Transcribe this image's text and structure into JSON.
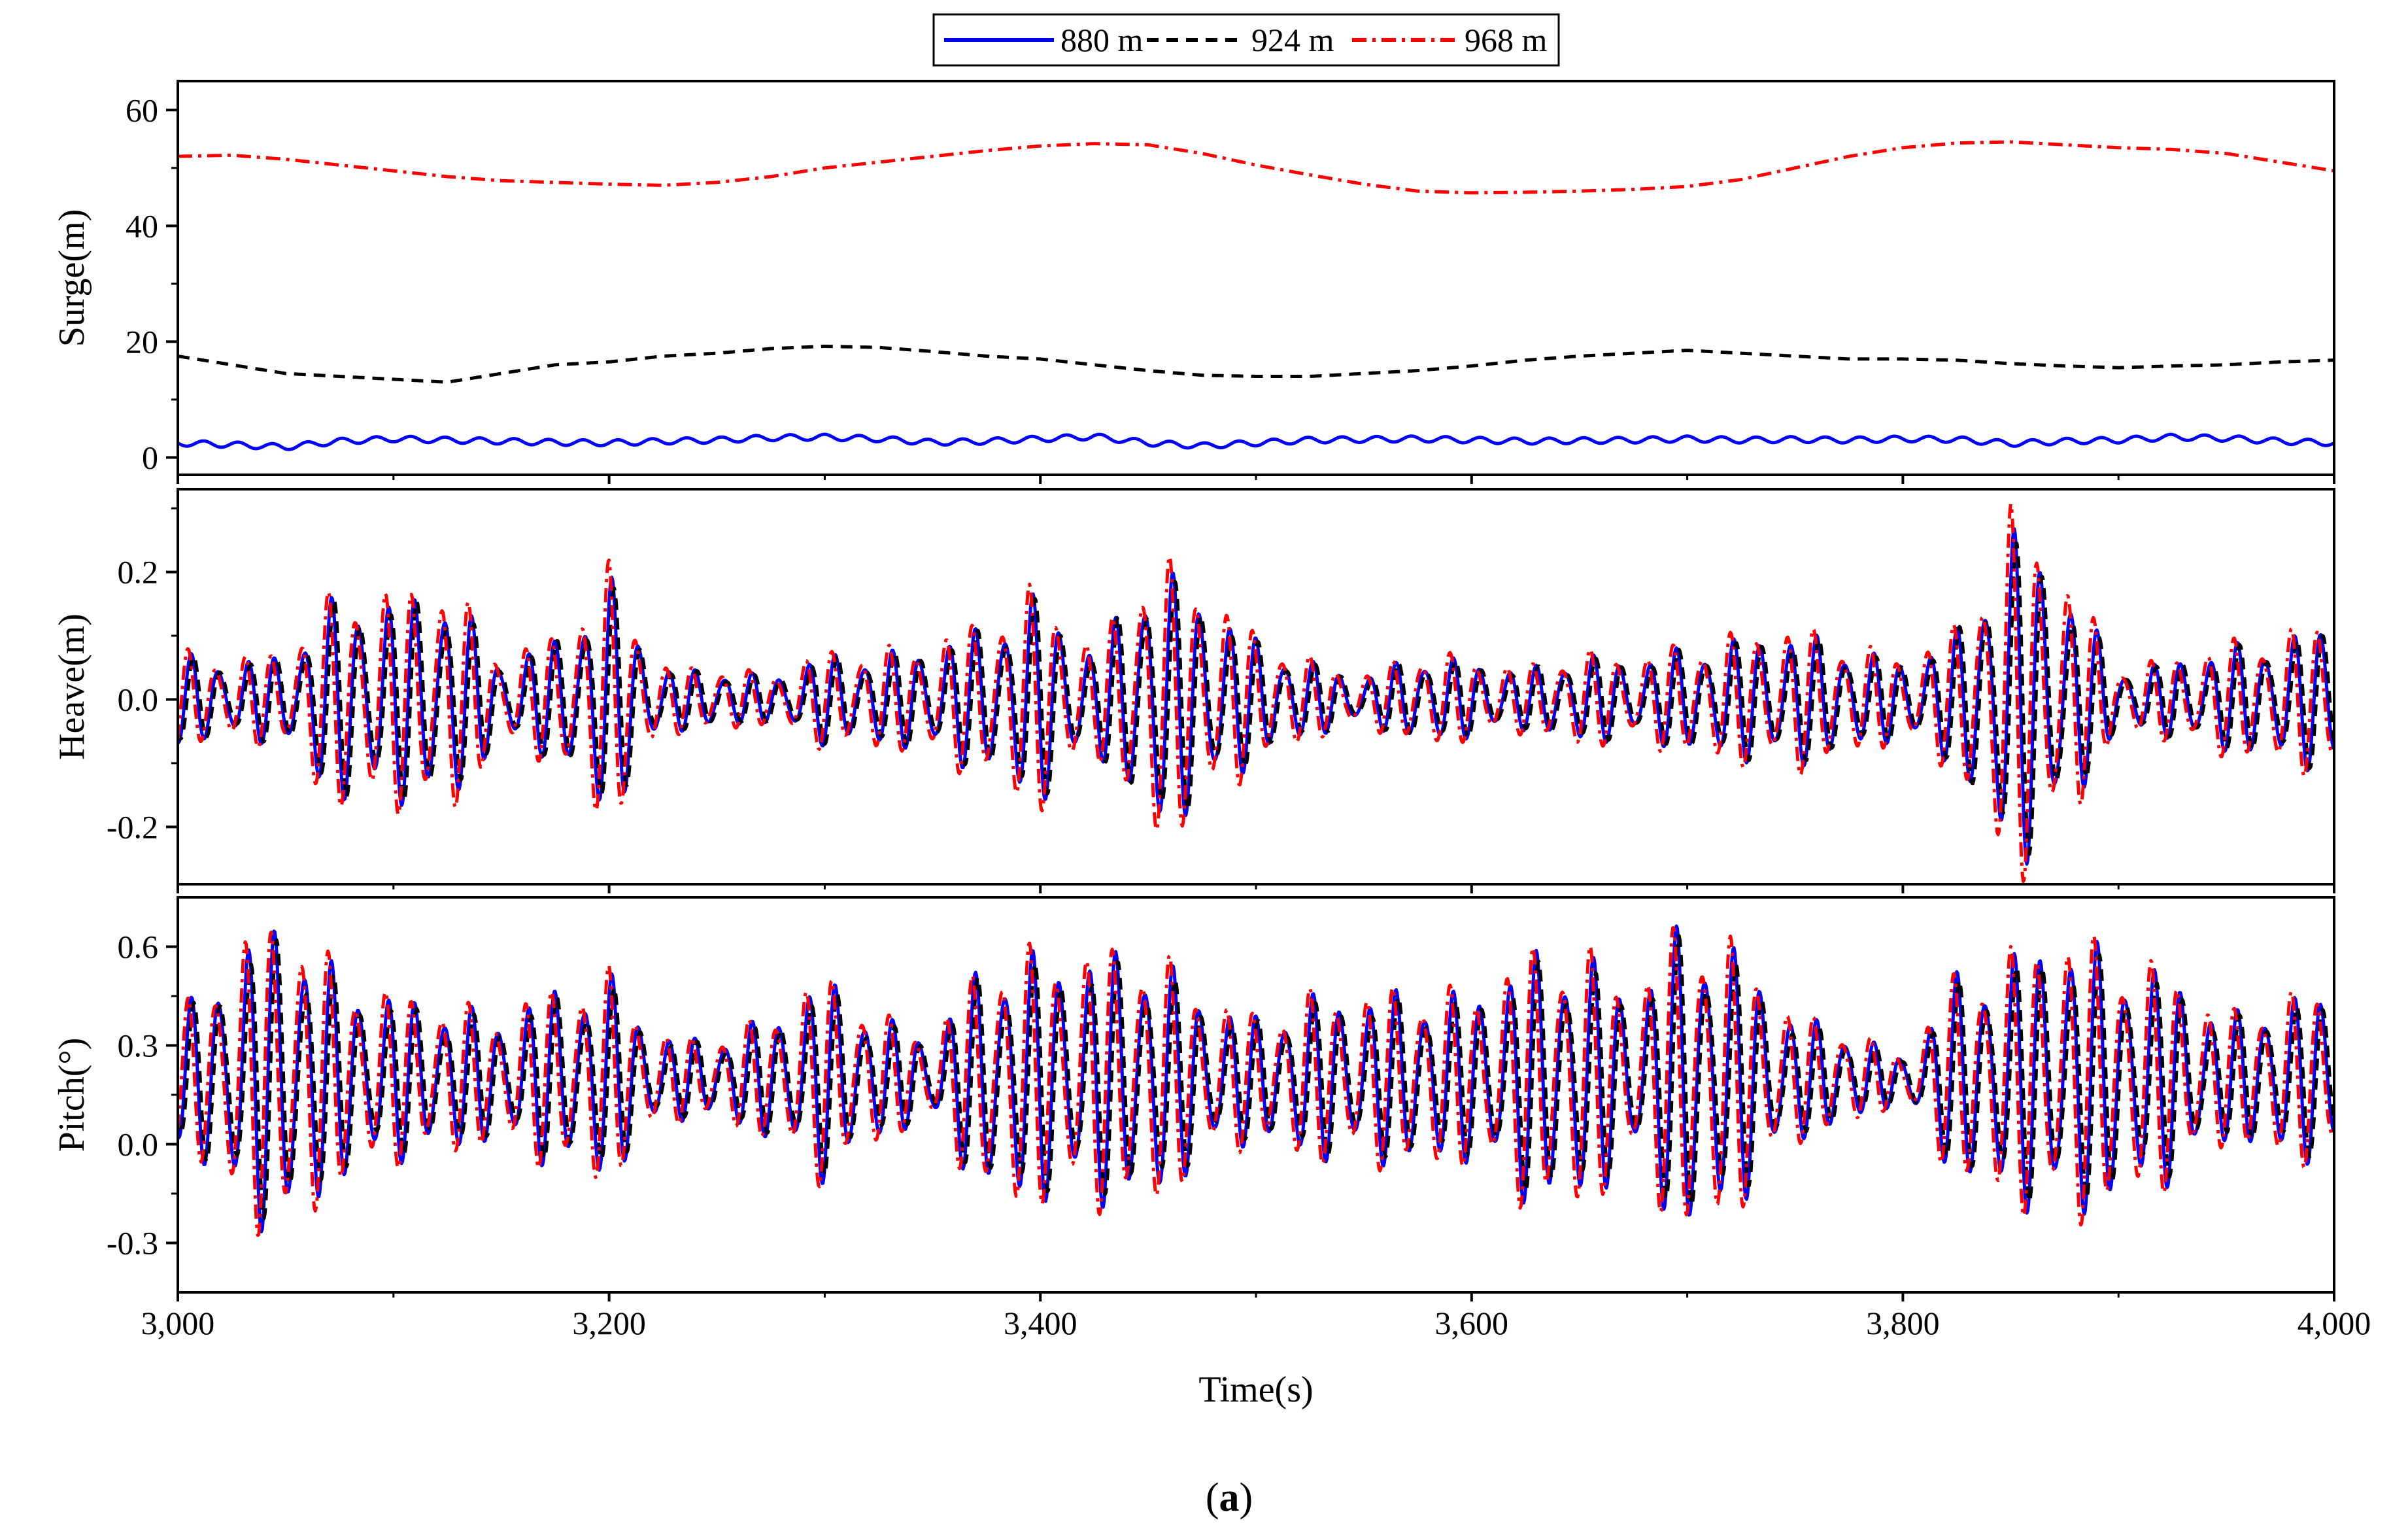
{
  "legend": {
    "entries": [
      {
        "label": "880 m",
        "color": "#0000ff",
        "style": "solid"
      },
      {
        "label": "924 m",
        "color": "#000000",
        "style": "dash"
      },
      {
        "label": "968 m",
        "color": "#ff0000",
        "style": "dashdot"
      }
    ]
  },
  "caption": {
    "open": "(",
    "letter": "a",
    "close": ")"
  },
  "x_axis": {
    "title": "Time(s)",
    "range": [
      3000,
      4000
    ],
    "ticks": [
      3000,
      3200,
      3400,
      3600,
      3800,
      4000
    ],
    "tick_labels": [
      "3,000",
      "3,200",
      "3,400",
      "3,600",
      "3,800",
      "4,000"
    ],
    "minor_ticks": [
      3100,
      3300,
      3500,
      3700,
      3900
    ]
  },
  "chart_data": [
    {
      "type": "line",
      "id": "surge",
      "ylabel": "Surge(m)",
      "ylim": [
        -3,
        65
      ],
      "yticks": [
        0,
        20,
        40,
        60
      ],
      "ytick_labels": [
        "0",
        "20",
        "40",
        "60"
      ],
      "yminor": [
        10,
        30,
        50
      ],
      "x": [
        3000,
        3025,
        3050,
        3075,
        3100,
        3125,
        3150,
        3175,
        3200,
        3225,
        3250,
        3275,
        3300,
        3325,
        3350,
        3375,
        3400,
        3425,
        3450,
        3475,
        3500,
        3525,
        3550,
        3575,
        3600,
        3625,
        3650,
        3675,
        3700,
        3725,
        3750,
        3775,
        3800,
        3825,
        3850,
        3875,
        3900,
        3925,
        3950,
        3975,
        4000
      ],
      "series": [
        {
          "name": "880 m",
          "color": "#0000ff",
          "osc": 0.5,
          "values": [
            2.5,
            2.2,
            1.8,
            2.8,
            3.2,
            3.0,
            2.8,
            2.6,
            2.5,
            2.8,
            3.0,
            3.4,
            3.5,
            3.2,
            2.6,
            2.8,
            3.2,
            3.6,
            2.5,
            2.0,
            2.5,
            3.0,
            3.1,
            3.2,
            3.0,
            2.8,
            2.9,
            3.0,
            3.2,
            3.0,
            3.1,
            3.0,
            3.2,
            3.1,
            2.4,
            2.8,
            3.0,
            3.5,
            3.3,
            2.8,
            2.5
          ]
        },
        {
          "name": "924 m",
          "color": "#000000",
          "osc": 0.0,
          "values": [
            17.5,
            16.0,
            14.5,
            14.0,
            13.5,
            13.0,
            14.5,
            16.0,
            16.5,
            17.5,
            18.0,
            18.8,
            19.2,
            19.0,
            18.3,
            17.5,
            17.0,
            16.0,
            15.0,
            14.2,
            14.0,
            14.0,
            14.5,
            15.0,
            15.8,
            16.8,
            17.5,
            18.0,
            18.5,
            18.0,
            17.5,
            17.0,
            17.0,
            16.8,
            16.2,
            15.8,
            15.5,
            15.8,
            16.0,
            16.5,
            16.8
          ]
        },
        {
          "name": "968 m",
          "color": "#ff0000",
          "osc": 0.0,
          "values": [
            52.0,
            52.2,
            51.5,
            50.5,
            49.5,
            48.5,
            47.8,
            47.5,
            47.2,
            47.0,
            47.5,
            48.5,
            50.0,
            51.0,
            52.0,
            53.0,
            53.8,
            54.2,
            54.0,
            52.5,
            50.5,
            48.8,
            47.2,
            46.0,
            45.7,
            45.8,
            46.0,
            46.3,
            46.8,
            48.0,
            50.0,
            52.0,
            53.5,
            54.3,
            54.5,
            54.0,
            53.5,
            53.2,
            52.5,
            51.0,
            49.5
          ]
        }
      ]
    },
    {
      "type": "line",
      "id": "heave",
      "ylabel": "Heave(m)",
      "ylim": [
        -0.29,
        0.33
      ],
      "yticks": [
        -0.2,
        0.0,
        0.2
      ],
      "ytick_labels": [
        "-0.2",
        "0.0",
        "0.2"
      ],
      "yminor": [
        -0.1,
        0.1,
        0.3
      ],
      "period_s": 13,
      "x": [
        3000,
        3025,
        3050,
        3075,
        3100,
        3125,
        3150,
        3175,
        3200,
        3225,
        3250,
        3275,
        3300,
        3325,
        3350,
        3375,
        3400,
        3425,
        3450,
        3475,
        3500,
        3525,
        3550,
        3575,
        3600,
        3625,
        3650,
        3675,
        3700,
        3725,
        3750,
        3775,
        3800,
        3825,
        3850,
        3875,
        3900,
        3925,
        3950,
        3975,
        4000
      ],
      "amplitude": [
        0.06,
        0.05,
        0.06,
        0.14,
        0.13,
        0.15,
        0.05,
        0.08,
        0.16,
        0.04,
        0.04,
        0.03,
        0.06,
        0.06,
        0.07,
        0.1,
        0.14,
        0.06,
        0.18,
        0.14,
        0.08,
        0.05,
        0.03,
        0.06,
        0.05,
        0.04,
        0.06,
        0.05,
        0.07,
        0.08,
        0.09,
        0.07,
        0.05,
        0.09,
        0.23,
        0.16,
        0.04,
        0.05,
        0.07,
        0.08,
        0.1
      ],
      "series": [
        {
          "name": "880 m",
          "color": "#0000ff",
          "amp_scale": 1.0,
          "phase": 0.0,
          "offset": 0.0
        },
        {
          "name": "924 m",
          "color": "#000000",
          "amp_scale": 0.95,
          "phase": -0.5,
          "offset": 0.0
        },
        {
          "name": "968 m",
          "color": "#ff0000",
          "amp_scale": 1.1,
          "phase": 0.7,
          "offset": 0.0
        }
      ]
    },
    {
      "type": "line",
      "id": "pitch",
      "ylabel": "Pitch(°)",
      "ylim": [
        -0.45,
        0.75
      ],
      "yticks": [
        -0.3,
        0.0,
        0.3,
        0.6
      ],
      "ytick_labels": [
        "-0.3",
        "0.0",
        "0.3",
        "0.6"
      ],
      "yminor": [
        -0.15,
        0.15,
        0.45
      ],
      "period_s": 13,
      "x": [
        3000,
        3025,
        3050,
        3075,
        3100,
        3125,
        3150,
        3175,
        3200,
        3225,
        3250,
        3275,
        3300,
        3325,
        3350,
        3375,
        3400,
        3425,
        3450,
        3475,
        3500,
        3525,
        3550,
        3575,
        3600,
        3625,
        3650,
        3675,
        3700,
        3725,
        3750,
        3775,
        3800,
        3825,
        3850,
        3875,
        3900,
        3925,
        3950,
        3975,
        4000
      ],
      "amplitude": [
        0.15,
        0.3,
        0.4,
        0.25,
        0.2,
        0.18,
        0.15,
        0.22,
        0.25,
        0.1,
        0.1,
        0.15,
        0.25,
        0.15,
        0.1,
        0.3,
        0.3,
        0.3,
        0.32,
        0.2,
        0.15,
        0.2,
        0.2,
        0.22,
        0.2,
        0.3,
        0.32,
        0.2,
        0.4,
        0.3,
        0.15,
        0.12,
        0.05,
        0.25,
        0.3,
        0.35,
        0.3,
        0.25,
        0.15,
        0.2,
        0.2
      ],
      "series": [
        {
          "name": "880 m",
          "color": "#0000ff",
          "amp_scale": 1.05,
          "phase": 0.0,
          "offset": 0.2
        },
        {
          "name": "924 m",
          "color": "#000000",
          "amp_scale": 0.95,
          "phase": -0.5,
          "offset": 0.2
        },
        {
          "name": "968 m",
          "color": "#ff0000",
          "amp_scale": 1.1,
          "phase": 0.7,
          "offset": 0.2
        }
      ]
    }
  ]
}
